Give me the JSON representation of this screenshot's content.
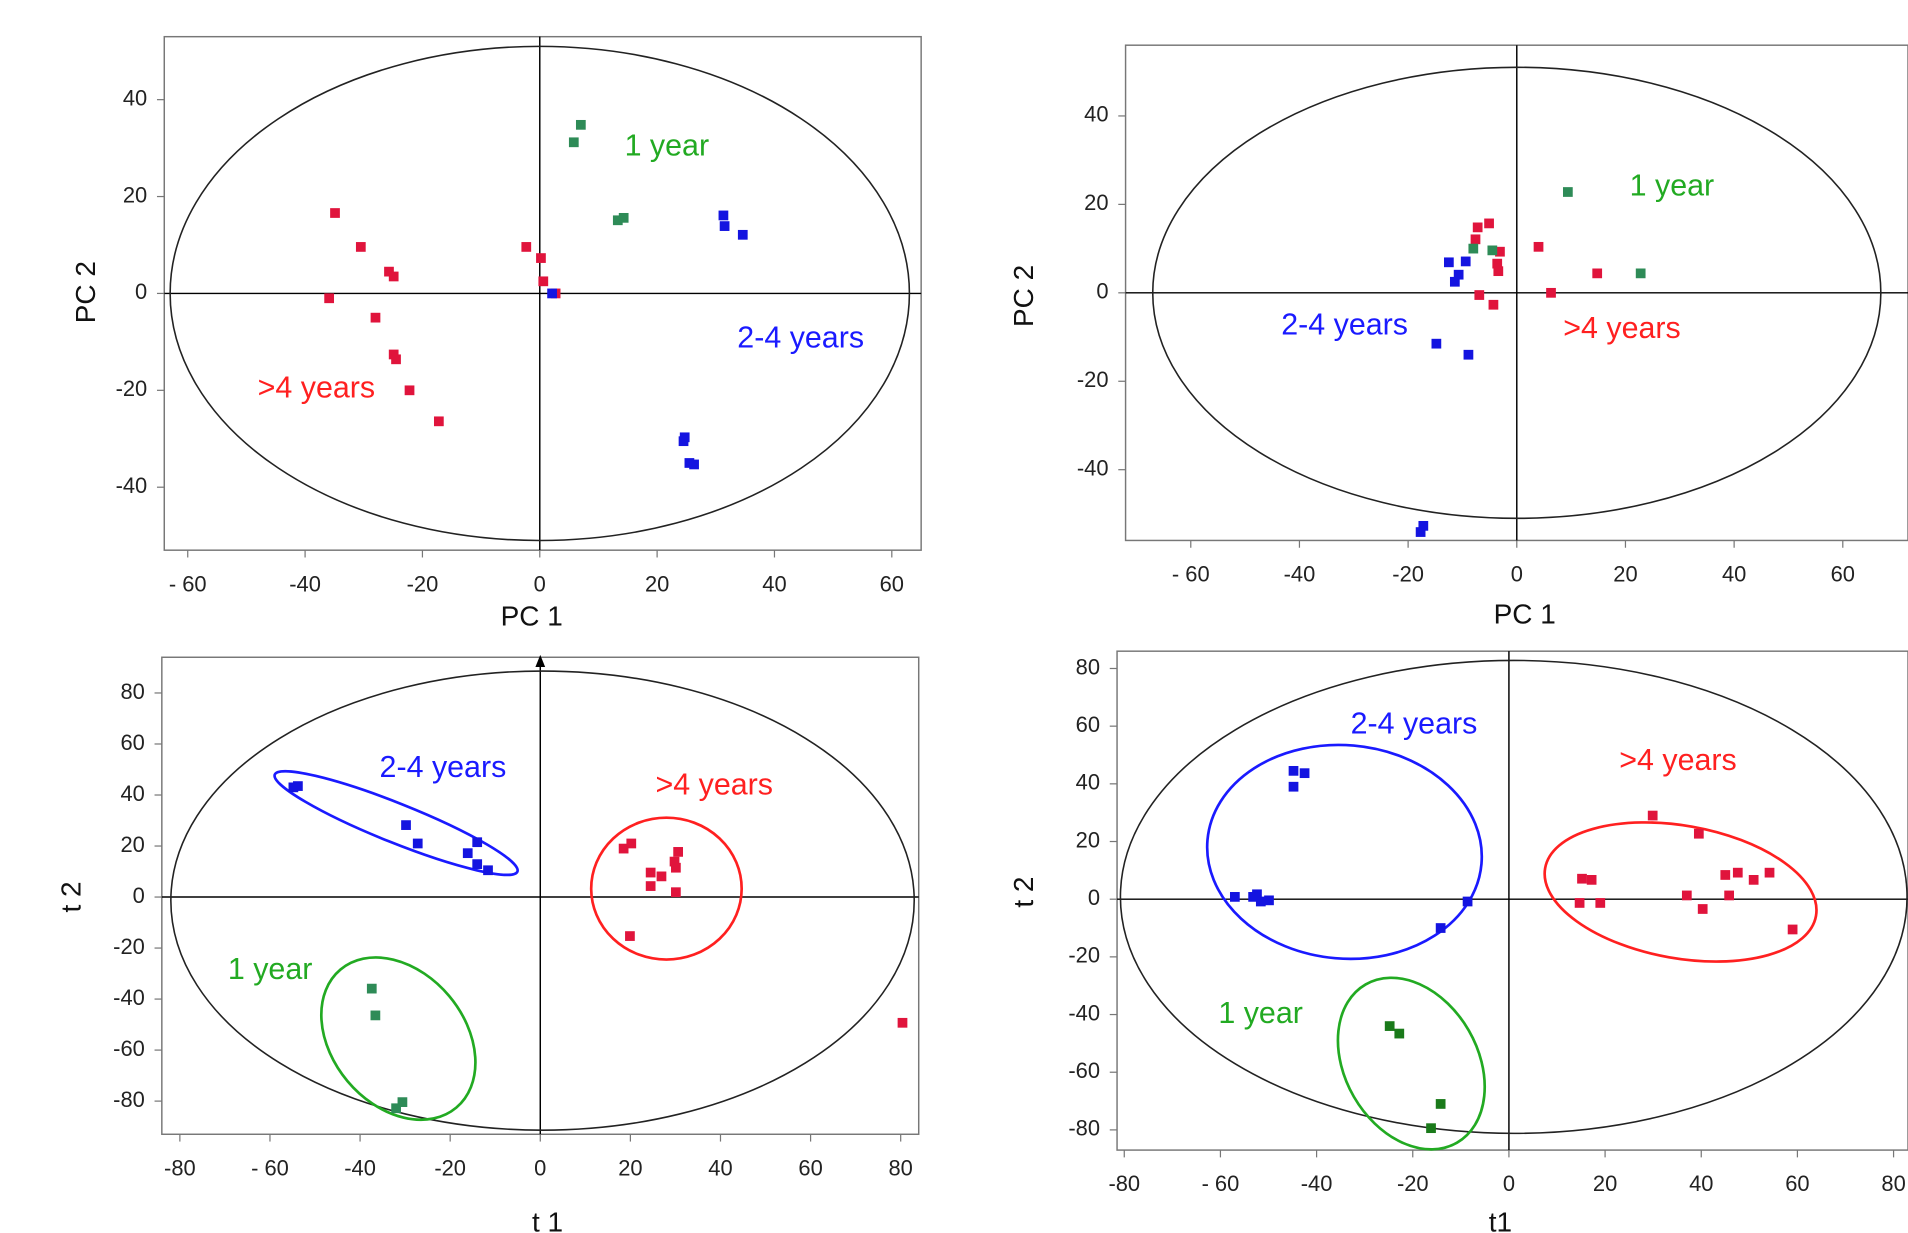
{
  "chart_data": [
    {
      "type": "scatter",
      "x_label": "PC 1",
      "y_label": "PC 2",
      "xlim": [
        -64,
        65
      ],
      "ylim": [
        -53,
        53
      ],
      "xticks": [
        {
          "value": -60,
          "label": "- 60"
        },
        -40,
        -20,
        0,
        20,
        40,
        60
      ],
      "yticks": [
        40,
        20,
        0,
        -20,
        -40
      ],
      "series": [
        {
          "name": ">4 years",
          "color": "#e0143c",
          "x": [
            -34.9,
            -30.5,
            -25.7,
            -24.9,
            -35.9,
            -28,
            -24.9,
            -24.5,
            -22.2,
            -17.2,
            -2.3,
            0.2,
            0.6,
            2.7
          ],
          "y": [
            16.6,
            9.6,
            4.5,
            3.5,
            -1,
            -5,
            -12.6,
            -13.6,
            -20,
            -26.4,
            9.6,
            7.3,
            2.5,
            0
          ]
        },
        {
          "name": "2-4 years",
          "color": "#1414e0",
          "x": [
            2.1,
            31.3,
            31.5,
            34.6,
            24.7,
            24.5,
            25.5,
            26.3
          ],
          "y": [
            0,
            16.1,
            13.9,
            12.1,
            -29.7,
            -30.5,
            -35,
            -35.3
          ]
        },
        {
          "name": "1 year",
          "color": "#2e8b57",
          "x": [
            5.8,
            7,
            13.3,
            14.3
          ],
          "y": [
            31.2,
            34.8,
            15.1,
            15.6
          ]
        }
      ]
    },
    {
      "type": "scatter",
      "x_label": "PC 1",
      "y_label": "PC 2",
      "xlim": [
        -72,
        72
      ],
      "ylim": [
        -56,
        56
      ],
      "xticks": [
        {
          "value": -60,
          "label": "- 60"
        },
        -40,
        -20,
        0,
        20,
        40,
        60
      ],
      "yticks": [
        40,
        20,
        0,
        -20,
        -40
      ],
      "series": [
        {
          "name": ">4 years",
          "color": "#e0143c",
          "x": [
            -7.2,
            -5.1,
            -7.6,
            -3.1,
            -3.6,
            -3.4,
            4,
            14.8,
            6.3,
            -6.9,
            -4.3
          ],
          "y": [
            14.8,
            15.7,
            12.1,
            9.3,
            6.6,
            4.9,
            10.4,
            4.4,
            0,
            -0.5,
            -2.7
          ]
        },
        {
          "name": "2-4 years",
          "color": "#1414e0",
          "x": [
            -12.5,
            -9.4,
            -10.7,
            -11.4,
            -14.8,
            -8.9,
            -17.2,
            -17.7
          ],
          "y": [
            6.9,
            7.1,
            4.1,
            2.5,
            -11.5,
            -14,
            -52.7,
            -54.1
          ]
        },
        {
          "name": "1 year",
          "color": "#2e8b57",
          "x": [
            9.4,
            22.8,
            -8,
            -4.5
          ],
          "y": [
            22.8,
            4.4,
            10,
            9.6
          ]
        }
      ]
    },
    {
      "type": "scatter",
      "x_label": "t 1",
      "y_label": "t 2",
      "xlim": [
        -84,
        84
      ],
      "ylim": [
        -93,
        94
      ],
      "xticks": [
        -80,
        {
          "value": -60,
          "label": "- 60"
        },
        -40,
        -20,
        0,
        20,
        40,
        60,
        80
      ],
      "yticks": [
        80,
        60,
        40,
        20,
        0,
        -20,
        -40,
        -60,
        -80
      ],
      "series": [
        {
          "name": ">4 years",
          "color": "#e0143c",
          "x": [
            18.5,
            20.2,
            30.6,
            29.8,
            30.1,
            24.5,
            26.9,
            24.5,
            30.1,
            19.9,
            80.4
          ],
          "y": [
            19,
            21,
            17.7,
            13.9,
            11.5,
            9.6,
            8.1,
            4.3,
            1.9,
            -15.3,
            -49.3
          ]
        },
        {
          "name": "2-4 years",
          "color": "#1414e0",
          "x": [
            -54.8,
            -53.8,
            -29.8,
            -27.2,
            -14,
            -16.1,
            -14,
            -11.6
          ],
          "y": [
            43,
            43.5,
            28.2,
            21,
            21.5,
            17.2,
            12.9,
            10.5
          ]
        },
        {
          "name": "1 year",
          "color": "#2e8b57",
          "x": [
            -37.4,
            -36.6,
            -30.6,
            -32
          ],
          "y": [
            -35.9,
            -46.4,
            -80.4,
            -82.8
          ]
        }
      ]
    },
    {
      "type": "scatter",
      "x_label": "t1",
      "y_label": "t 2",
      "xlim": [
        -81.5,
        83
      ],
      "ylim": [
        -87,
        86
      ],
      "xticks": [
        -80,
        {
          "value": -60,
          "label": "- 60"
        },
        -40,
        -20,
        0,
        20,
        40,
        60,
        80
      ],
      "yticks": [
        80,
        60,
        40,
        20,
        0,
        -20,
        -40,
        -60,
        -80
      ],
      "series": [
        {
          "name": ">4 years",
          "color": "#e0143c",
          "x": [
            29.9,
            39.5,
            15.2,
            17.2,
            14.7,
            19,
            37,
            40.3,
            45,
            47.6,
            45.8,
            50.9,
            54.2,
            59
          ],
          "y": [
            29,
            22.7,
            7.1,
            6.7,
            -1.3,
            -1.3,
            1.3,
            -3.4,
            8.4,
            9.2,
            1.3,
            6.7,
            9.2,
            -10.5
          ]
        },
        {
          "name": "2-4 years",
          "color": "#1414e0",
          "x": [
            -44.8,
            -42.5,
            -44.8,
            -57,
            -52.4,
            -51.6,
            -53.2,
            -49.9,
            -14.2,
            -8.6
          ],
          "y": [
            44.5,
            43.7,
            39,
            0.8,
            1.7,
            -0.8,
            0.8,
            -0.4,
            -10,
            -0.8
          ]
        },
        {
          "name": "1 year",
          "color": "#1a7a1a",
          "x": [
            -24.8,
            -22.8,
            -14.2,
            -16.2
          ],
          "y": [
            -44,
            -46.6,
            -71,
            -79.4
          ]
        }
      ]
    }
  ]
}
